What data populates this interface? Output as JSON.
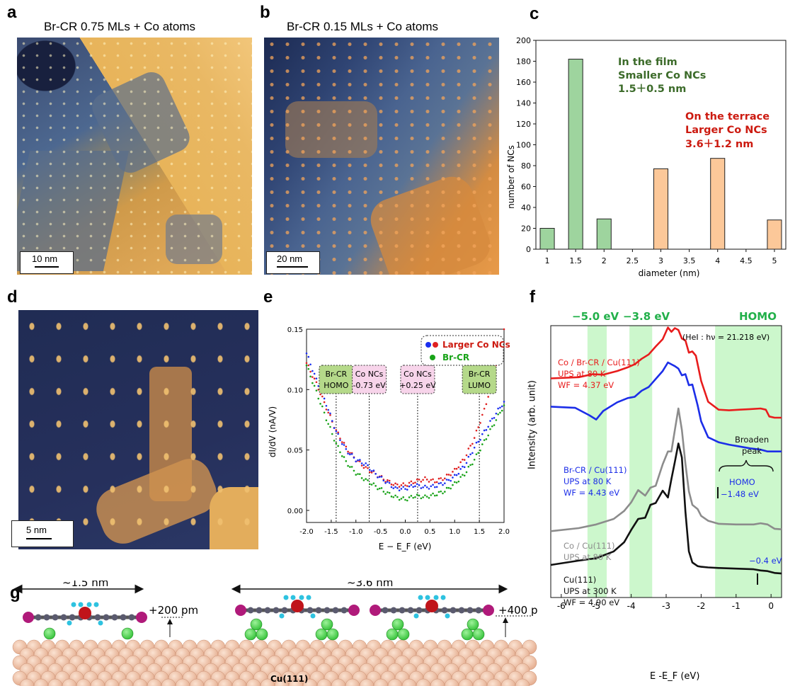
{
  "panels": {
    "a": {
      "letter": "a",
      "title": "Br-CR 0.75 MLs + Co atoms",
      "scale": "10 nm"
    },
    "b": {
      "letter": "b",
      "title": "Br-CR 0.15 MLs + Co atoms",
      "scale": "20 nm"
    },
    "c": {
      "letter": "c"
    },
    "d": {
      "letter": "d",
      "scale": "5 nm"
    },
    "e": {
      "letter": "e"
    },
    "f": {
      "letter": "f"
    },
    "g": {
      "letter": "g"
    }
  },
  "panel_c": {
    "ylabel": "number of NCs",
    "xlabel": "diameter (nm)",
    "film": {
      "l1": "In the film",
      "l2": "Smaller Co NCs",
      "l3": "1.5＋0.5 nm"
    },
    "terrace": {
      "l1": "On the terrace",
      "l2": "Larger Co NCs",
      "l3": "3.6＋1.2 nm"
    }
  },
  "panel_e": {
    "ylabel": "dI/dV (nA/V)",
    "xlabel": "E − E_F (eV)",
    "legend": [
      "Larger Co NCs",
      "Br-CR"
    ],
    "boxes": [
      {
        "l1": "Br-CR",
        "l2": "HOMO"
      },
      {
        "l1": "Co NCs",
        "l2": "-0.73 eV"
      },
      {
        "l1": "Co NCs",
        "l2": "+0.25 eV"
      },
      {
        "l1": "Br-CR",
        "l2": "LUMO"
      }
    ]
  },
  "panel_f": {
    "ylabel": "Intensity (arb. unit)",
    "xlabel": "E -E_F (eV)",
    "band_labels": [
      "−5.0 eV",
      "−3.8 eV",
      "HOMO"
    ],
    "source": "(HeI : hν = 21.218 eV)",
    "red": [
      "Co / Br-CR / Cu(111)",
      "UPS at 80 K",
      "WF = 4.37 eV"
    ],
    "blue": [
      "Br-CR / Cu(111)",
      "UPS at 80 K",
      "WF = 4.43 eV"
    ],
    "gray": [
      "Co / Cu(111)",
      "UPS at 80 K"
    ],
    "black": [
      "Cu(111)",
      "UPS at 300 K",
      "WF = 4.90 eV"
    ],
    "broaden": [
      "Broaden",
      "peak"
    ],
    "homo_mark": [
      "HOMO",
      "−1.48 eV"
    ],
    "cu_mark": "−0.4 eV"
  },
  "panel_g": {
    "small": "~1.5 nm",
    "large": "~3.6 nm",
    "h1": "+200 pm",
    "h2": "+400 pm",
    "substrate": "Cu(111)"
  },
  "chart_data": [
    {
      "type": "bar",
      "categories": [
        1,
        1.5,
        2,
        3,
        4,
        5
      ],
      "values": [
        20,
        182,
        29,
        77,
        87,
        28
      ],
      "groups": [
        "film",
        "film",
        "film",
        "terrace",
        "terrace",
        "terrace"
      ],
      "xlabel": "diameter (nm)",
      "ylabel": "number of NCs",
      "xlim": [
        0.8,
        5.2
      ],
      "ylim": [
        0,
        200
      ],
      "xticks": [
        1,
        1.5,
        2,
        2.5,
        3,
        3.5,
        4,
        4.5,
        5
      ],
      "yticks": [
        0,
        20,
        40,
        60,
        80,
        100,
        120,
        140,
        160,
        180,
        200
      ],
      "colors": {
        "film": "#9ed49e",
        "terrace": "#fcc899"
      }
    },
    {
      "type": "scatter",
      "xlabel": "E − E_F (eV)",
      "ylabel": "dI/dV (nA/V)",
      "xlim": [
        -2.0,
        2.0
      ],
      "ylim": [
        -0.01,
        0.15
      ],
      "xticks": [
        -2.0,
        -1.5,
        -1.0,
        -0.5,
        0.0,
        0.5,
        1.0,
        1.5,
        2.0
      ],
      "yticks": [
        0.0,
        0.05,
        0.1,
        0.15
      ],
      "series": [
        {
          "name": "Larger Co NCs",
          "color": "#e02020",
          "x": [
            -2.0,
            -1.8,
            -1.6,
            -1.4,
            -1.2,
            -1.0,
            -0.8,
            -0.6,
            -0.4,
            -0.2,
            0.0,
            0.2,
            0.4,
            0.6,
            0.8,
            1.0,
            1.2,
            1.4,
            1.6,
            1.8,
            2.0
          ],
          "y": [
            0.122,
            0.105,
            0.085,
            0.066,
            0.052,
            0.042,
            0.035,
            0.03,
            0.025,
            0.021,
            0.021,
            0.024,
            0.026,
            0.024,
            0.027,
            0.033,
            0.043,
            0.06,
            0.083,
            0.113,
            0.15
          ]
        },
        {
          "name": "Larger Co NCs (blue)",
          "color": "#1a2ef0",
          "x": [
            -2.0,
            -1.8,
            -1.6,
            -1.4,
            -1.2,
            -1.0,
            -0.8,
            -0.6,
            -0.4,
            -0.2,
            0.0,
            0.2,
            0.4,
            0.6,
            0.8,
            1.0,
            1.2,
            1.4,
            1.6,
            1.8,
            2.0
          ],
          "y": [
            0.13,
            0.108,
            0.088,
            0.065,
            0.05,
            0.042,
            0.038,
            0.03,
            0.024,
            0.018,
            0.018,
            0.021,
            0.019,
            0.02,
            0.023,
            0.028,
            0.037,
            0.052,
            0.065,
            0.078,
            0.09
          ]
        },
        {
          "name": "Br-CR",
          "color": "#18a318",
          "x": [
            -2.0,
            -1.8,
            -1.6,
            -1.4,
            -1.2,
            -1.0,
            -0.8,
            -0.6,
            -0.4,
            -0.2,
            0.0,
            0.2,
            0.4,
            0.6,
            0.8,
            1.0,
            1.2,
            1.4,
            1.6,
            1.8,
            2.0
          ],
          "y": [
            0.12,
            0.098,
            0.076,
            0.055,
            0.04,
            0.031,
            0.025,
            0.02,
            0.015,
            0.011,
            0.009,
            0.012,
            0.011,
            0.013,
            0.016,
            0.022,
            0.03,
            0.042,
            0.057,
            0.072,
            0.087
          ]
        }
      ],
      "vlines": [
        -1.4,
        -0.73,
        0.25,
        1.5
      ]
    },
    {
      "type": "line",
      "xlabel": "E -E_F (eV)",
      "ylabel": "Intensity (arb. unit)",
      "xlim": [
        -6.3,
        0.3
      ],
      "xticks": [
        -6,
        -5,
        -4,
        -3,
        -2,
        -1,
        0
      ],
      "bands": [
        [
          -5.25,
          -4.7
        ],
        [
          -4.05,
          -3.4
        ],
        [
          -1.6,
          0.3
        ]
      ],
      "series": [
        {
          "name": "Co / Br-CR / Cu(111)",
          "color": "#e81c1c",
          "x": [
            -6.3,
            -5.5,
            -5.1,
            -4.8,
            -4.4,
            -4.1,
            -3.9,
            -3.7,
            -3.5,
            -3.3,
            -3.1,
            -2.95,
            -2.85,
            -2.75,
            -2.65,
            -2.55,
            -2.45,
            -2.35,
            -2.25,
            -2.15,
            -2.0,
            -1.8,
            -1.5,
            -1.2,
            -0.9,
            -0.6,
            -0.3,
            -0.15,
            -0.05,
            0.1,
            0.3
          ],
          "y": [
            17.4,
            17.6,
            18.1,
            18.0,
            18.6,
            19.2,
            19.7,
            20.6,
            21.3,
            22.6,
            23.8,
            25.7,
            25.0,
            25.6,
            25.3,
            23.9,
            23.6,
            21.6,
            21.8,
            21.1,
            17.0,
            13.6,
            12.3,
            12.2,
            12.3,
            12.4,
            12.5,
            12.3,
            11.2,
            11.0,
            11.0
          ]
        },
        {
          "name": "Br-CR / Cu(111)",
          "color": "#1c2ee8",
          "x": [
            -6.3,
            -5.6,
            -5.2,
            -5.0,
            -4.8,
            -4.4,
            -4.1,
            -3.9,
            -3.7,
            -3.5,
            -3.3,
            -3.1,
            -2.95,
            -2.85,
            -2.75,
            -2.65,
            -2.55,
            -2.45,
            -2.35,
            -2.25,
            -2.1,
            -2.0,
            -1.8,
            -1.5,
            -1.2,
            -0.9,
            -0.6,
            -0.3,
            -0.1,
            0.1,
            0.3
          ],
          "y": [
            12.8,
            12.6,
            11.4,
            10.7,
            12.1,
            13.5,
            14.2,
            14.4,
            15.4,
            16.0,
            17.3,
            18.6,
            20.0,
            19.7,
            19.4,
            19.0,
            17.9,
            18.1,
            16.3,
            16.4,
            13.0,
            10.4,
            7.8,
            7.0,
            6.6,
            6.3,
            6.0,
            5.8,
            5.5,
            5.5,
            5.5
          ]
        },
        {
          "name": "Co / Cu(111)",
          "color": "#8c8c8c",
          "x": [
            -6.3,
            -5.5,
            -5.0,
            -4.5,
            -4.2,
            -4.0,
            -3.8,
            -3.6,
            -3.45,
            -3.3,
            -3.1,
            -2.95,
            -2.85,
            -2.75,
            -2.65,
            -2.55,
            -2.45,
            -2.35,
            -2.25,
            -2.1,
            -2.0,
            -1.8,
            -1.5,
            -1.0,
            -0.5,
            -0.3,
            -0.1,
            0.1,
            0.3
          ],
          "y": [
            -7.5,
            -7.0,
            -6.4,
            -5.5,
            -4.2,
            -2.8,
            -0.8,
            -1.7,
            -0.4,
            -0.1,
            3.4,
            5.5,
            5.5,
            9.0,
            12.5,
            9.0,
            3.5,
            -1.0,
            -3.2,
            -3.9,
            -5.0,
            -5.8,
            -6.3,
            -6.4,
            -6.4,
            -6.2,
            -6.4,
            -7.1,
            -7.2
          ]
        },
        {
          "name": "Cu(111)",
          "color": "#111111",
          "x": [
            -6.3,
            -5.5,
            -5.0,
            -4.5,
            -4.2,
            -4.0,
            -3.8,
            -3.6,
            -3.45,
            -3.3,
            -3.1,
            -2.95,
            -2.85,
            -2.75,
            -2.65,
            -2.55,
            -2.45,
            -2.35,
            -2.25,
            -2.1,
            -2.0,
            -1.8,
            -1.5,
            -1.0,
            -0.5,
            -0.3,
            -0.1,
            0.1,
            0.3
          ],
          "y": [
            -13.0,
            -12.3,
            -11.9,
            -10.8,
            -9.3,
            -7.3,
            -5.5,
            -5.3,
            -3.2,
            -2.9,
            -0.9,
            -2.0,
            1.0,
            3.8,
            6.8,
            4.5,
            -4.3,
            -10.8,
            -12.6,
            -13.2,
            -13.3,
            -13.4,
            -13.5,
            -13.6,
            -13.7,
            -13.9,
            -14.0,
            -14.3,
            -14.4
          ]
        }
      ]
    }
  ]
}
